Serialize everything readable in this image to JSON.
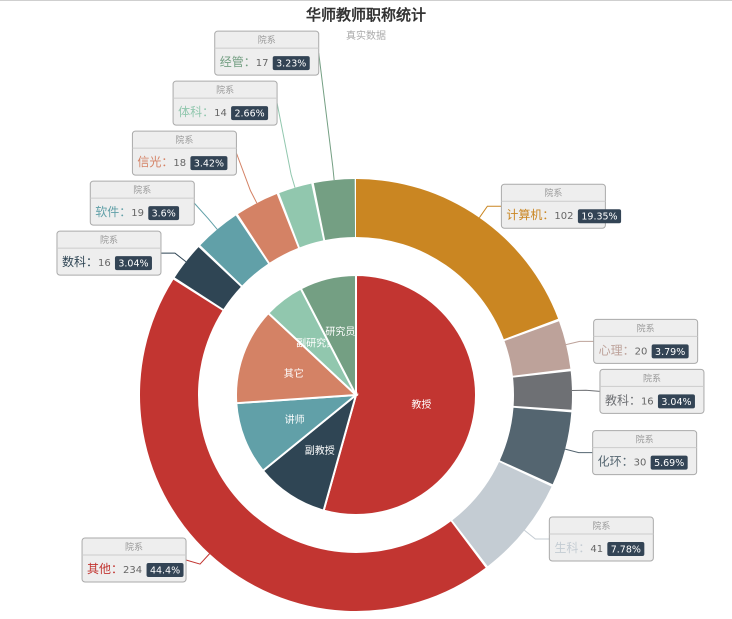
{
  "chart_data": {
    "type": "pie",
    "title": "华师教师职称统计",
    "subtitle": "真实数据",
    "inner": {
      "slices": [
        {
          "name": "教授",
          "value": 50,
          "color": "#c23531"
        },
        {
          "name": "副教授",
          "value": 9,
          "color": "#2f4554"
        },
        {
          "name": "讲师",
          "value": 9,
          "color": "#61a0a8"
        },
        {
          "name": "其它",
          "value": 12,
          "color": "#d48265"
        },
        {
          "name": "副研究员",
          "value": 5,
          "color": "#91c7ae"
        },
        {
          "name": "研究员",
          "value": 7,
          "color": "#749f83"
        }
      ]
    },
    "outer": {
      "label_header": "院系",
      "slices": [
        {
          "name": "计算机",
          "value": 102,
          "percent": "19.35%",
          "color": "#ca8622"
        },
        {
          "name": "心理",
          "value": 20,
          "percent": "3.79%",
          "color": "#bda29a"
        },
        {
          "name": "教科",
          "value": 16,
          "percent": "3.04%",
          "color": "#6e7074"
        },
        {
          "name": "化环",
          "value": 30,
          "percent": "5.69%",
          "color": "#546570"
        },
        {
          "name": "生科",
          "value": 41,
          "percent": "7.78%",
          "color": "#c4ccd3"
        },
        {
          "name": "其他",
          "value": 234,
          "percent": "44.4%",
          "color": "#c23531"
        },
        {
          "name": "数科",
          "value": 16,
          "percent": "3.04%",
          "color": "#2f4554"
        },
        {
          "name": "软件",
          "value": 19,
          "percent": "3.6%",
          "color": "#61a0a8"
        },
        {
          "name": "信光",
          "value": 18,
          "percent": "3.42%",
          "color": "#d48265"
        },
        {
          "name": "体科",
          "value": 14,
          "percent": "2.66%",
          "color": "#91c7ae"
        },
        {
          "name": "经管",
          "value": 17,
          "percent": "3.23%",
          "color": "#749f83"
        }
      ]
    }
  }
}
